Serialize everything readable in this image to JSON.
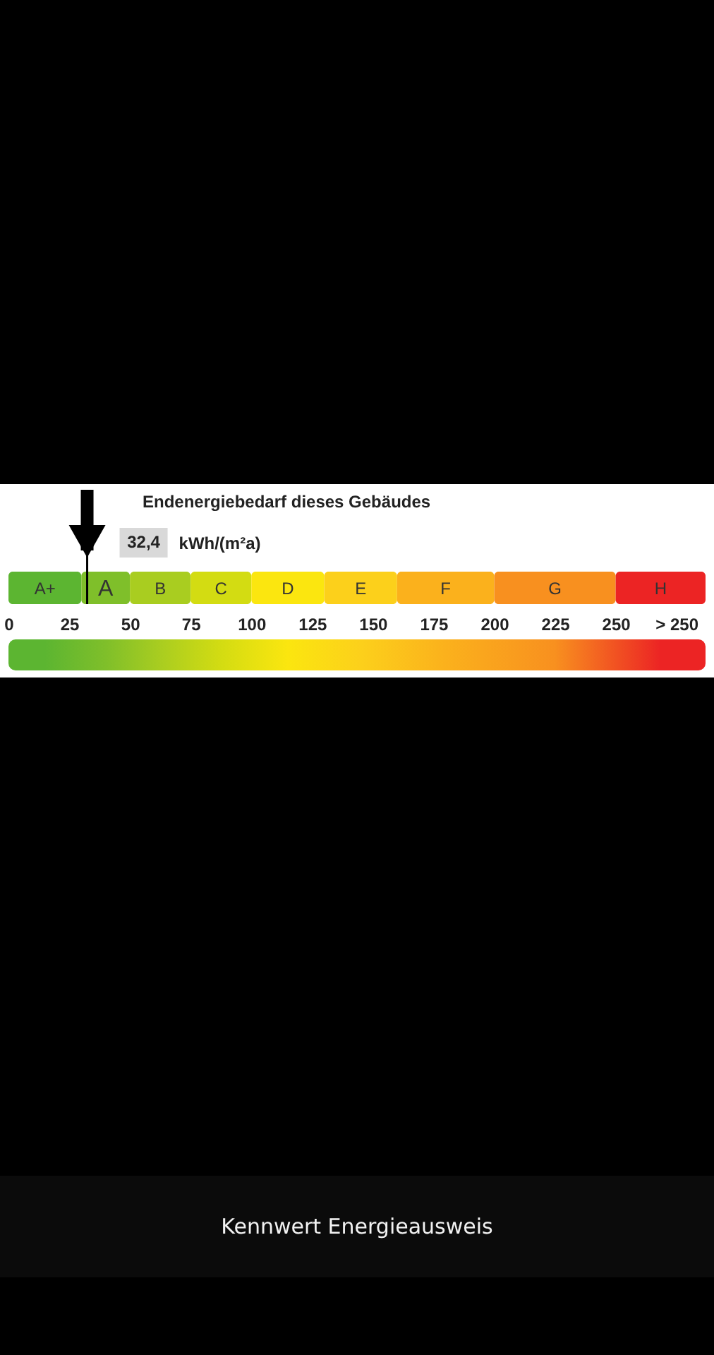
{
  "chart_data": {
    "type": "bar",
    "orientation": "horizontal",
    "stacked": true,
    "title": "Endenergiebedarf dieses Gebäudes",
    "categories": [
      null
    ],
    "series": [
      {
        "name": "A+",
        "color": "#5cb531",
        "values": [
          30
        ]
      },
      {
        "name": "A",
        "color": "#7fbf2a",
        "values": [
          20
        ]
      },
      {
        "name": "B",
        "color": "#a9cd20",
        "values": [
          25
        ]
      },
      {
        "name": "C",
        "color": "#d3dc12",
        "values": [
          25
        ]
      },
      {
        "name": "D",
        "color": "#fbe60f",
        "values": [
          30
        ]
      },
      {
        "name": "E",
        "color": "#fcd01b",
        "values": [
          30
        ]
      },
      {
        "name": "F",
        "color": "#fbb11c",
        "values": [
          40
        ]
      },
      {
        "name": "G",
        "color": "#f8901f",
        "values": [
          50
        ]
      },
      {
        "name": "H",
        "color": "#ec2424",
        "values": [
          37
        ]
      }
    ],
    "xlim": [
      0,
      287
    ],
    "xticks": [
      0,
      25,
      50,
      75,
      100,
      125,
      150,
      175,
      200,
      225,
      250,
      {
        "value": 275,
        "label": "> 250"
      }
    ],
    "ref_lines": [
      {
        "axis": "x",
        "value": 32.4,
        "label": "32,4",
        "color": "#000000"
      }
    ],
    "annotations": [
      "kWh/(m²a)",
      "Kennwert Energieausweis"
    ]
  }
}
